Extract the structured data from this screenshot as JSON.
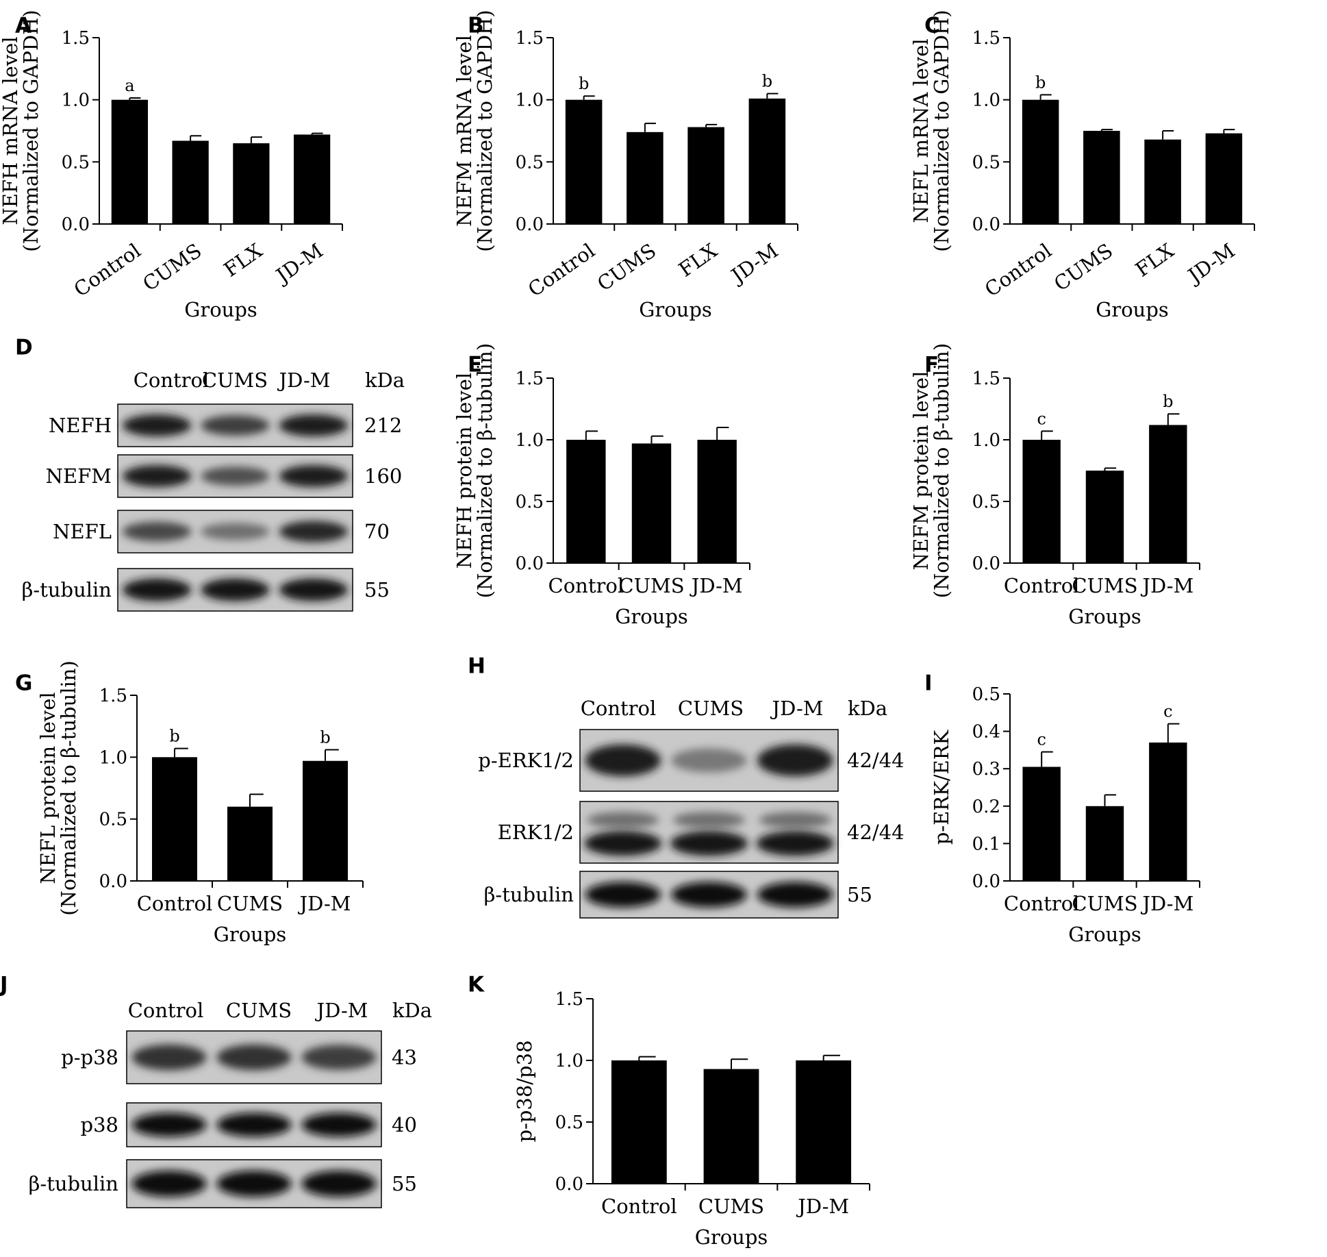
{
  "chart_data": [
    {
      "id": "A",
      "type": "bar",
      "categories": [
        "Control",
        "CUMS",
        "FLX",
        "JD-M"
      ],
      "values": [
        1.0,
        0.67,
        0.65,
        0.72
      ],
      "errors": [
        0.015,
        0.04,
        0.05,
        0.01
      ],
      "significance": [
        "a",
        "",
        "",
        ""
      ],
      "ylabel": [
        "NEFH mRNA level",
        "(Normalized to GAPDH)"
      ],
      "xlabel": "Groups",
      "ylim": [
        0,
        1.5
      ],
      "yticks": [
        "0.0",
        "0.5",
        "1.0",
        "1.5"
      ]
    },
    {
      "id": "B",
      "type": "bar",
      "categories": [
        "Control",
        "CUMS",
        "FLX",
        "JD-M"
      ],
      "values": [
        1.0,
        0.74,
        0.78,
        1.01
      ],
      "errors": [
        0.03,
        0.07,
        0.02,
        0.04
      ],
      "significance": [
        "b",
        "",
        "",
        "b"
      ],
      "ylabel": [
        "NEFM mRNA level",
        "(Normalized to GAPDH)"
      ],
      "xlabel": "Groups",
      "ylim": [
        0,
        1.5
      ],
      "yticks": [
        "0.0",
        "0.5",
        "1.0",
        "1.5"
      ]
    },
    {
      "id": "C",
      "type": "bar",
      "categories": [
        "Control",
        "CUMS",
        "FLX",
        "JD-M"
      ],
      "values": [
        1.0,
        0.75,
        0.68,
        0.73
      ],
      "errors": [
        0.04,
        0.01,
        0.07,
        0.03
      ],
      "significance": [
        "b",
        "",
        "",
        ""
      ],
      "ylabel": [
        "NEFL mRNA level",
        "(Normalized to GAPDH)"
      ],
      "xlabel": "Groups",
      "ylim": [
        0,
        1.5
      ],
      "yticks": [
        "0.0",
        "0.5",
        "1.0",
        "1.5"
      ]
    },
    {
      "id": "E",
      "type": "bar",
      "categories": [
        "Control",
        "CUMS",
        "JD-M"
      ],
      "values": [
        1.0,
        0.97,
        1.0
      ],
      "errors": [
        0.07,
        0.06,
        0.1
      ],
      "significance": [
        "",
        "",
        ""
      ],
      "ylabel": [
        "NEFH protein level",
        "(Normalized to β-tubulin)"
      ],
      "xlabel": "Groups",
      "ylim": [
        0,
        1.5
      ],
      "yticks": [
        "0.0",
        "0.5",
        "1.0",
        "1.5"
      ]
    },
    {
      "id": "F",
      "type": "bar",
      "categories": [
        "Control",
        "CUMS",
        "JD-M"
      ],
      "values": [
        1.0,
        0.75,
        1.12
      ],
      "errors": [
        0.07,
        0.02,
        0.09
      ],
      "significance": [
        "c",
        "",
        "b"
      ],
      "ylabel": [
        "NEFM protein level",
        "(Normalized to β-tubulin)"
      ],
      "xlabel": "Groups",
      "ylim": [
        0,
        1.5
      ],
      "yticks": [
        "0.0",
        "0.5",
        "1.0",
        "1.5"
      ]
    },
    {
      "id": "G",
      "type": "bar",
      "categories": [
        "Control",
        "CUMS",
        "JD-M"
      ],
      "values": [
        1.0,
        0.6,
        0.97
      ],
      "errors": [
        0.07,
        0.1,
        0.09
      ],
      "significance": [
        "b",
        "",
        "b"
      ],
      "ylabel": [
        "NEFL protein level",
        "(Normalized to β-tubulin)"
      ],
      "xlabel": "Groups",
      "ylim": [
        0,
        1.5
      ],
      "yticks": [
        "0.0",
        "0.5",
        "1.0",
        "1.5"
      ]
    },
    {
      "id": "I",
      "type": "bar",
      "categories": [
        "Control",
        "CUMS",
        "JD-M"
      ],
      "values": [
        0.305,
        0.2,
        0.37
      ],
      "errors": [
        0.04,
        0.03,
        0.05
      ],
      "significance": [
        "c",
        "",
        "c"
      ],
      "ylabel": [
        "p-ERK/ERK"
      ],
      "xlabel": "Groups",
      "ylim": [
        0,
        0.5
      ],
      "yticks": [
        "0.0",
        "0.1",
        "0.2",
        "0.3",
        "0.4",
        "0.5"
      ]
    },
    {
      "id": "K",
      "type": "bar",
      "categories": [
        "Control",
        "CUMS",
        "JD-M"
      ],
      "values": [
        1.0,
        0.93,
        1.0
      ],
      "errors": [
        0.03,
        0.08,
        0.04
      ],
      "significance": [
        "",
        "",
        ""
      ],
      "ylabel": [
        "p-p38/p38"
      ],
      "xlabel": "Groups",
      "ylim": [
        0,
        1.5
      ],
      "yticks": [
        "0.0",
        "0.5",
        "1.0",
        "1.5"
      ]
    }
  ],
  "blots": [
    {
      "id": "D",
      "lanes": [
        "Control",
        "CUMS",
        "JD-M"
      ],
      "kda_header": "kDa",
      "rows": [
        {
          "label": "NEFH",
          "kda": "212",
          "intensity": [
            0.85,
            0.7,
            0.85
          ],
          "double": false
        },
        {
          "label": "NEFM",
          "kda": "160",
          "intensity": [
            0.85,
            0.6,
            0.85
          ],
          "double": false
        },
        {
          "label": "NEFL",
          "kda": "70",
          "intensity": [
            0.65,
            0.45,
            0.8
          ],
          "double": false
        },
        {
          "label": "β-tubulin",
          "kda": "55",
          "intensity": [
            0.9,
            0.9,
            0.9
          ],
          "double": false
        }
      ]
    },
    {
      "id": "H",
      "lanes": [
        "Control",
        "CUMS",
        "JD-M"
      ],
      "kda_header": "kDa",
      "rows": [
        {
          "label": "p-ERK1/2",
          "kda": "42/44",
          "intensity": [
            0.85,
            0.4,
            0.85
          ],
          "double": false
        },
        {
          "label": "ERK1/2",
          "kda": "42/44",
          "intensity": [
            0.9,
            0.9,
            0.9
          ],
          "double": true
        },
        {
          "label": "β-tubulin",
          "kda": "55",
          "intensity": [
            0.95,
            0.95,
            0.95
          ],
          "double": false
        }
      ]
    },
    {
      "id": "J",
      "lanes": [
        "Control",
        "CUMS",
        "JD-M"
      ],
      "kda_header": "kDa",
      "rows": [
        {
          "label": "p-p38",
          "kda": "43",
          "intensity": [
            0.75,
            0.75,
            0.7
          ],
          "double": false
        },
        {
          "label": "p38",
          "kda": "40",
          "intensity": [
            0.95,
            0.95,
            0.95
          ],
          "double": false
        },
        {
          "label": "β-tubulin",
          "kda": "55",
          "intensity": [
            0.95,
            0.95,
            0.95
          ],
          "double": false
        }
      ]
    }
  ]
}
